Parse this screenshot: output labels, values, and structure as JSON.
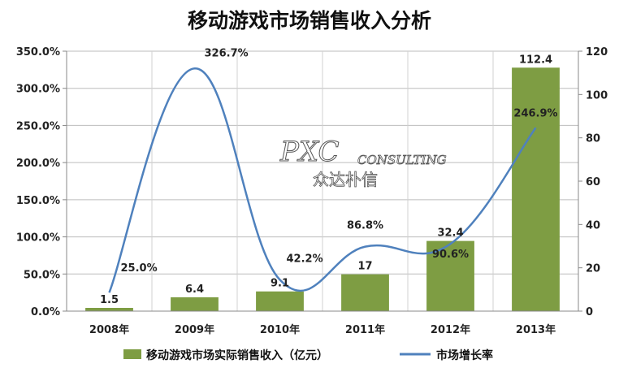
{
  "chart_data": {
    "type": "bar+line",
    "title": "移动游戏市场销售收入分析",
    "categories": [
      "2008年",
      "2009年",
      "2010年",
      "2011年",
      "2012年",
      "2013年"
    ],
    "series": [
      {
        "name": "移动游戏市场实际销售收入（亿元）",
        "type": "bar",
        "axis": "right",
        "values": [
          1.5,
          6.4,
          9.1,
          17,
          32.4,
          112.4
        ],
        "labels": [
          "1.5",
          "6.4",
          "9.1",
          "17",
          "32.4",
          "112.4"
        ],
        "color": "#7e9d43"
      },
      {
        "name": "市场增长率",
        "type": "line",
        "axis": "left",
        "values": [
          25.0,
          326.7,
          42.2,
          86.8,
          90.6,
          246.9
        ],
        "labels": [
          "25.0%",
          "326.7%",
          "42.2%",
          "86.8%",
          "90.6%",
          "246.9%"
        ],
        "color": "#4f81bd"
      }
    ],
    "y_left": {
      "range": [
        0,
        350
      ],
      "ticks": [
        "0.0%",
        "50.0%",
        "100.0%",
        "150.0%",
        "200.0%",
        "250.0%",
        "300.0%",
        "350.0%"
      ]
    },
    "y_right": {
      "range": [
        0,
        120
      ],
      "ticks": [
        "0",
        "20",
        "40",
        "60",
        "80",
        "100",
        "120"
      ]
    },
    "grid": true,
    "legend_position": "bottom"
  },
  "watermark": {
    "line1": "PXC",
    "line2": "CONSULTING",
    "line3": "众达朴信"
  }
}
